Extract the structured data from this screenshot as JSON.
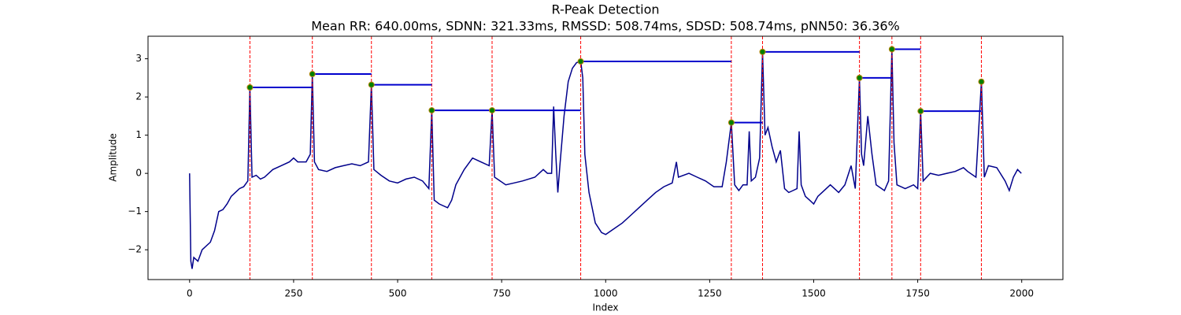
{
  "chart_data": {
    "type": "line",
    "title": "R-Peak Detection",
    "subtitle": "Mean RR: 640.00ms, SDNN: 321.33ms, RMSSD: 508.74ms, SDSD: 508.74ms, pNN50: 36.36%",
    "xlabel": "Index",
    "ylabel": "Amplitude",
    "xlim": [
      -99.95,
      2098.95
    ],
    "ylim": [
      -2.78,
      3.59
    ],
    "xticks": [
      0,
      250,
      500,
      750,
      1000,
      1250,
      1500,
      1750,
      2000
    ],
    "yticks": [
      {
        "value": -2,
        "label": "−2"
      },
      {
        "value": -1,
        "label": "−1"
      },
      0,
      1,
      2,
      3
    ],
    "signal": {
      "color": "#00008b",
      "x": [
        0,
        3,
        6,
        10,
        20,
        30,
        50,
        60,
        70,
        80,
        90,
        100,
        110,
        120,
        130,
        140,
        145,
        150,
        160,
        170,
        180,
        200,
        220,
        240,
        250,
        260,
        280,
        290,
        295,
        300,
        310,
        330,
        350,
        370,
        390,
        410,
        430,
        437,
        443,
        460,
        480,
        500,
        520,
        540,
        560,
        575,
        582,
        588,
        600,
        620,
        630,
        640,
        660,
        680,
        700,
        720,
        727,
        733,
        760,
        780,
        800,
        830,
        850,
        860,
        870,
        875,
        880,
        885,
        890,
        900,
        910,
        920,
        930,
        940,
        945,
        950,
        960,
        975,
        990,
        1000,
        1020,
        1040,
        1060,
        1080,
        1100,
        1120,
        1140,
        1160,
        1170,
        1175,
        1200,
        1220,
        1240,
        1260,
        1280,
        1290,
        1302,
        1310,
        1320,
        1330,
        1340,
        1345,
        1350,
        1360,
        1370,
        1377,
        1383,
        1390,
        1400,
        1410,
        1420,
        1430,
        1440,
        1450,
        1460,
        1465,
        1470,
        1480,
        1490,
        1500,
        1510,
        1520,
        1540,
        1560,
        1575,
        1590,
        1600,
        1610,
        1615,
        1620,
        1630,
        1640,
        1650,
        1670,
        1680,
        1688,
        1693,
        1700,
        1720,
        1740,
        1750,
        1757,
        1763,
        1780,
        1800,
        1820,
        1840,
        1860,
        1870,
        1890,
        1903,
        1910,
        1920,
        1940,
        1960,
        1970,
        1980,
        1990,
        1999
      ],
      "y": [
        0,
        -2.3,
        -2.5,
        -2.2,
        -2.3,
        -2.0,
        -1.8,
        -1.5,
        -1.0,
        -0.95,
        -0.8,
        -0.6,
        -0.5,
        -0.4,
        -0.35,
        -0.2,
        2.25,
        -0.1,
        -0.05,
        -0.15,
        -0.1,
        0.1,
        0.2,
        0.3,
        0.4,
        0.3,
        0.3,
        0.5,
        2.6,
        0.3,
        0.1,
        0.05,
        0.15,
        0.2,
        0.25,
        0.2,
        0.3,
        2.32,
        0.1,
        -0.05,
        -0.2,
        -0.25,
        -0.15,
        -0.1,
        -0.2,
        -0.4,
        1.65,
        -0.7,
        -0.8,
        -0.9,
        -0.7,
        -0.3,
        0.1,
        0.4,
        0.3,
        0.2,
        1.65,
        -0.1,
        -0.3,
        -0.25,
        -0.2,
        -0.1,
        0.1,
        0.0,
        0.0,
        1.75,
        0.5,
        -0.5,
        0.2,
        1.5,
        2.4,
        2.75,
        2.9,
        2.93,
        2.5,
        0.5,
        -0.5,
        -1.3,
        -1.55,
        -1.6,
        -1.45,
        -1.3,
        -1.1,
        -0.9,
        -0.7,
        -0.5,
        -0.35,
        -0.25,
        0.3,
        -0.1,
        0.0,
        -0.1,
        -0.2,
        -0.35,
        -0.35,
        0.3,
        1.33,
        -0.3,
        -0.45,
        -0.3,
        -0.3,
        1.1,
        -0.2,
        -0.1,
        0.4,
        3.18,
        1.0,
        1.2,
        0.7,
        0.3,
        0.6,
        -0.4,
        -0.5,
        -0.45,
        -0.4,
        1.1,
        -0.3,
        -0.6,
        -0.7,
        -0.8,
        -0.6,
        -0.5,
        -0.3,
        -0.5,
        -0.3,
        0.2,
        -0.4,
        2.5,
        0.5,
        0.2,
        1.5,
        0.5,
        -0.3,
        -0.45,
        -0.2,
        3.25,
        0.8,
        -0.3,
        -0.4,
        -0.3,
        -0.4,
        1.63,
        -0.2,
        0.0,
        -0.05,
        0.0,
        0.05,
        0.15,
        0.05,
        -0.1,
        2.4,
        -0.1,
        0.2,
        0.15,
        -0.2,
        -0.45,
        -0.1,
        0.1,
        0.0
      ]
    },
    "peaks": {
      "color": "green",
      "edge_color": "#b8860b",
      "line_color": "red",
      "rr_color": "#0000cd",
      "x": [
        145,
        295,
        437,
        582,
        727,
        940,
        1302,
        1377,
        1610,
        1688,
        1757,
        1903
      ],
      "y": [
        2.25,
        2.6,
        2.32,
        1.65,
        1.65,
        2.93,
        1.33,
        3.18,
        2.5,
        3.25,
        1.63,
        2.4
      ]
    }
  }
}
